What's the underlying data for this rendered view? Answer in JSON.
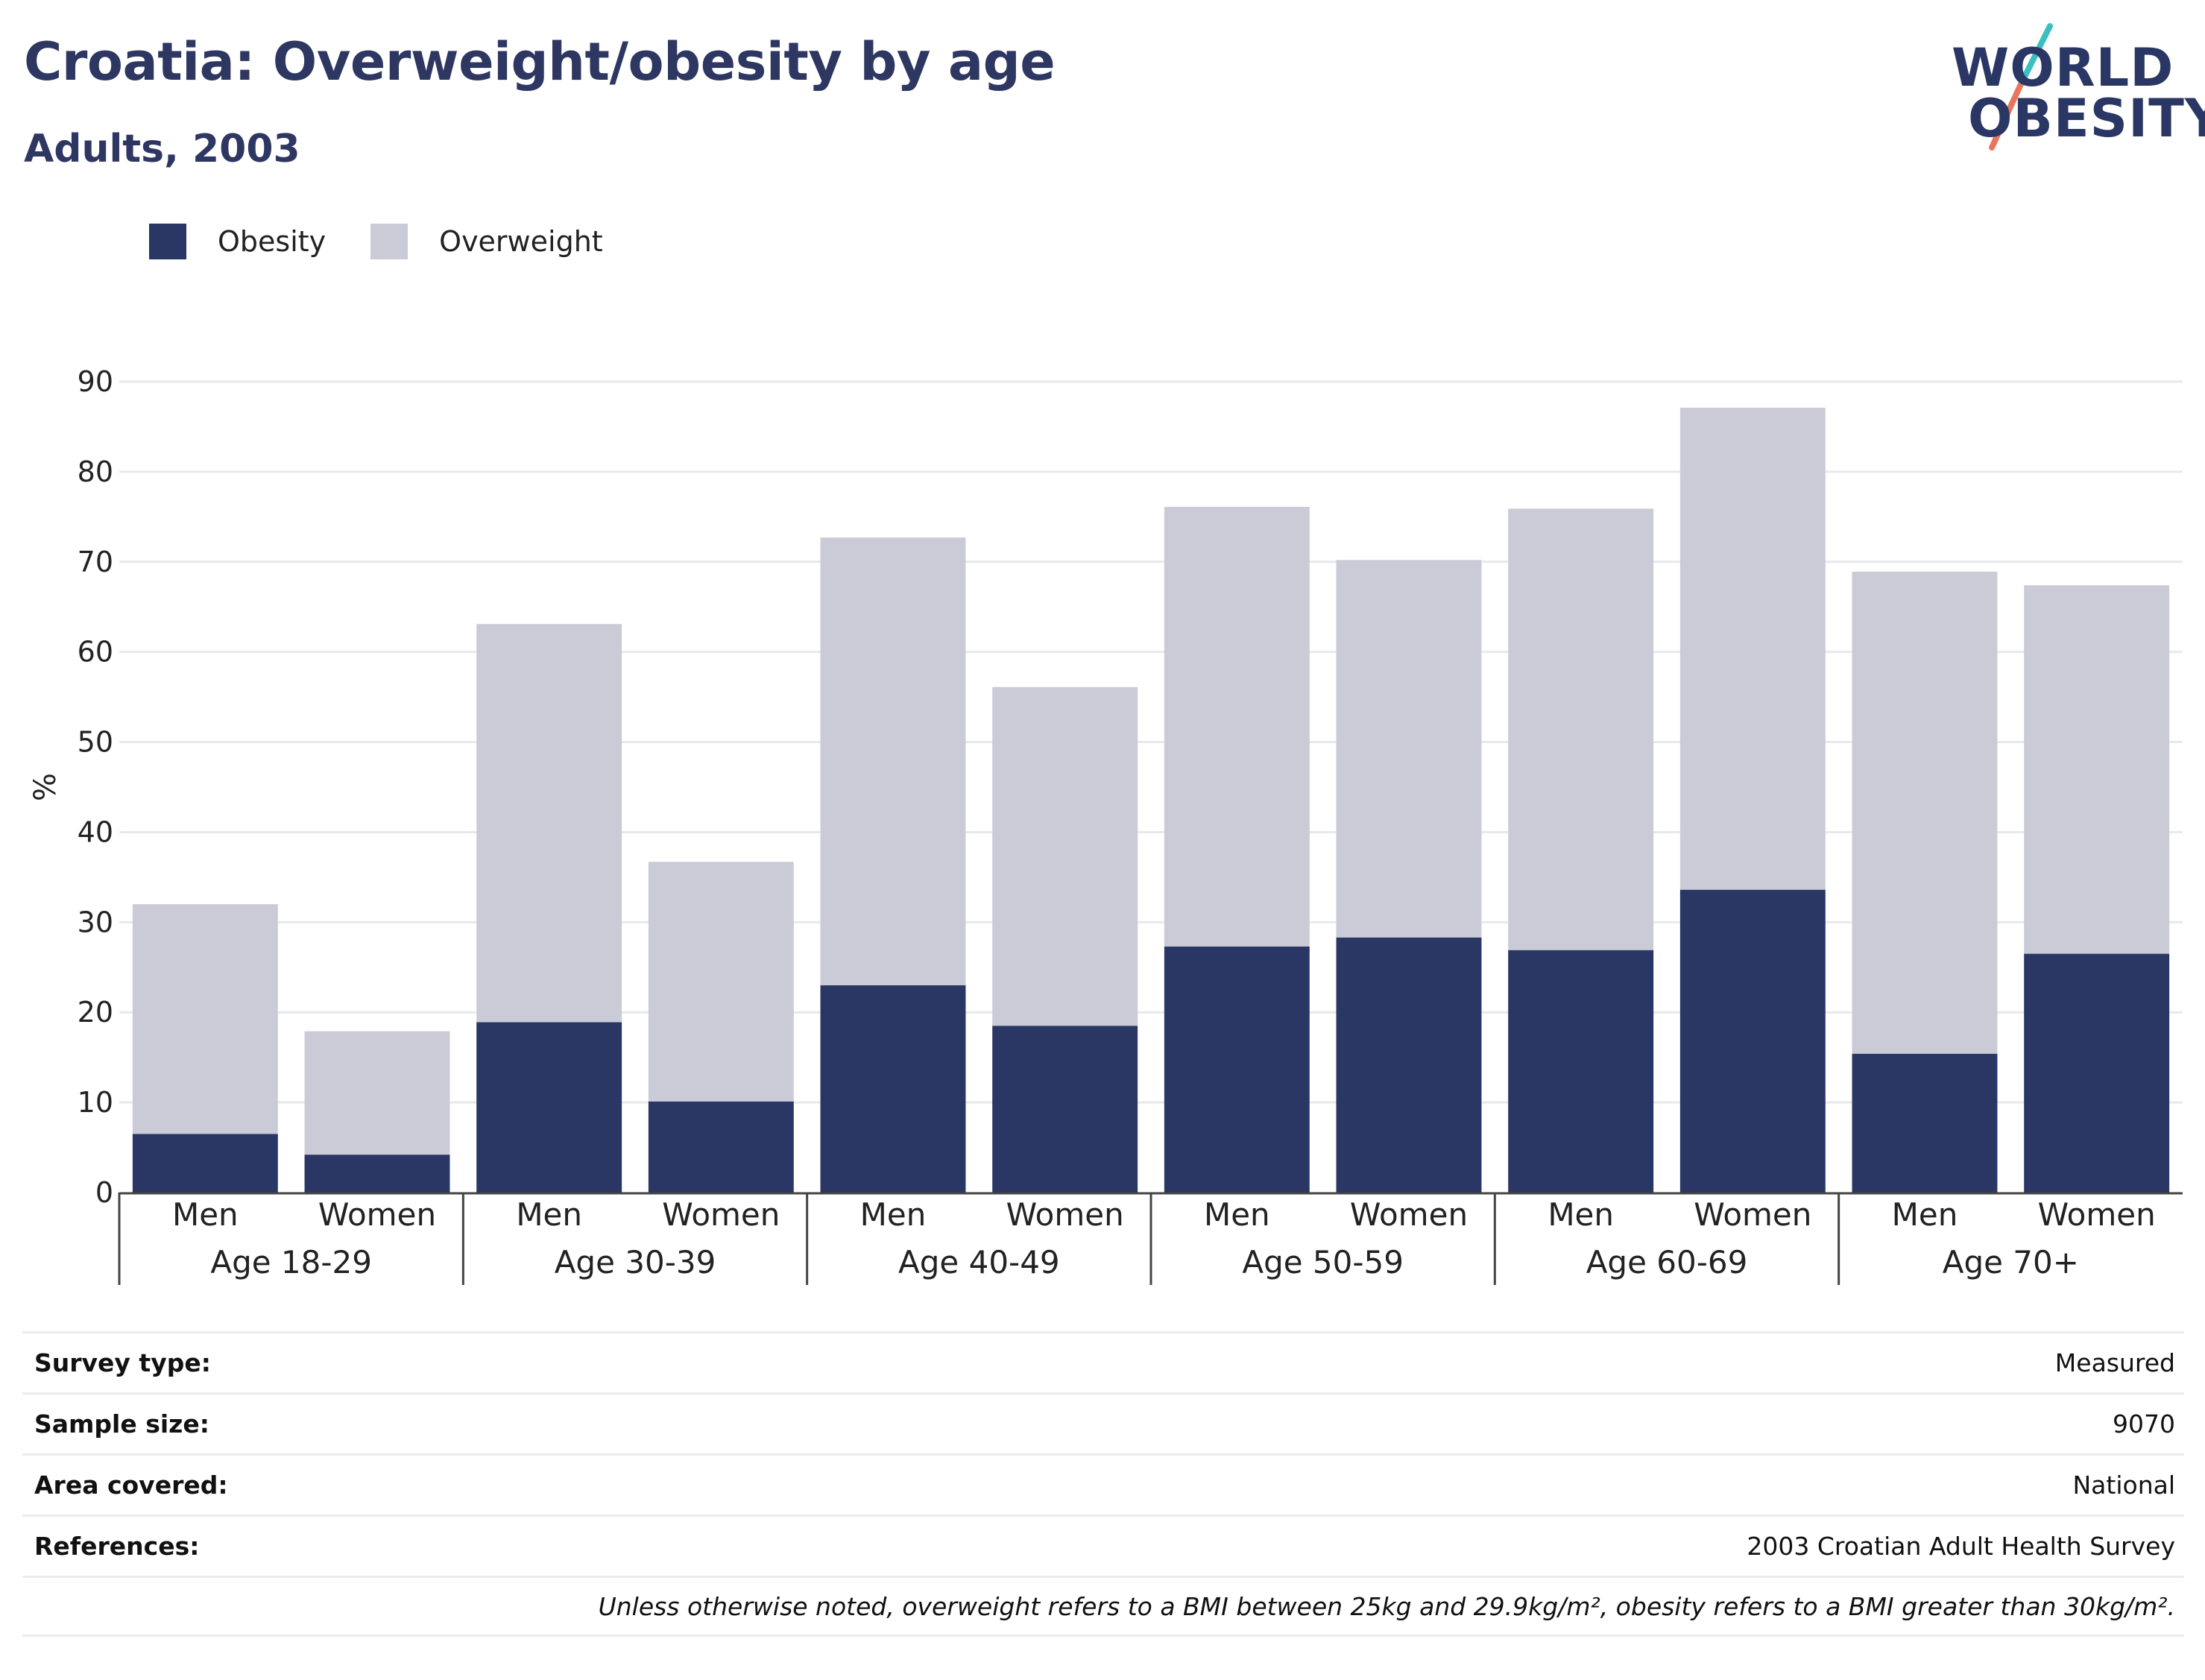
{
  "header": {
    "title": "Croatia: Overweight/obesity by age",
    "subtitle": "Adults, 2003"
  },
  "logo": {
    "line1": "WORLD",
    "line2": "OBESITY",
    "slash_colors": [
      "#3bbfc1",
      "#e8765f"
    ]
  },
  "colors": {
    "obesity": "#2a3664",
    "overweight": "#cbcbd7",
    "grid": "#e6e9ee"
  },
  "chart_data": {
    "type": "bar",
    "stacked": true,
    "ylabel": "%",
    "ylim": [
      0,
      90
    ],
    "yticks": [
      0,
      10,
      20,
      30,
      40,
      50,
      60,
      70,
      80,
      90
    ],
    "grid": true,
    "legend": [
      {
        "name": "Obesity",
        "color": "#2a3664"
      },
      {
        "name": "Overweight",
        "color": "#cbcbd7"
      }
    ],
    "legend_position": "top-left",
    "groups": [
      "Age 18-29",
      "Age 30-39",
      "Age 40-49",
      "Age 50-59",
      "Age 60-69",
      "Age 70+"
    ],
    "subcategories": [
      "Men",
      "Women"
    ],
    "series": [
      {
        "name": "Obesity",
        "values": [
          6.5,
          4.2,
          18.9,
          10.1,
          23.0,
          18.5,
          27.3,
          28.3,
          26.9,
          33.6,
          15.4,
          26.5
        ]
      },
      {
        "name": "Overweight",
        "values": [
          25.5,
          13.7,
          44.2,
          26.6,
          49.7,
          37.6,
          48.8,
          41.9,
          49.0,
          53.5,
          53.5,
          40.9
        ]
      }
    ]
  },
  "info": [
    {
      "key": "Survey type:",
      "value": "Measured"
    },
    {
      "key": "Sample size:",
      "value": "9070"
    },
    {
      "key": "Area covered:",
      "value": "National"
    },
    {
      "key": "References:",
      "value": "2003 Croatian Adult Health Survey"
    }
  ],
  "footnote": "Unless otherwise noted, overweight refers to a BMI between 25kg and 29.9kg/m², obesity refers to a BMI greater than 30kg/m²."
}
